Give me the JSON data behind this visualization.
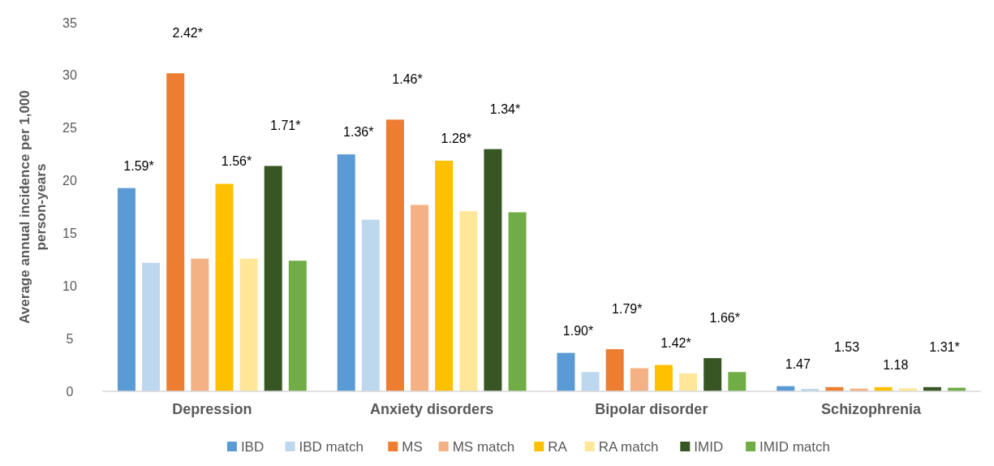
{
  "chart_data": {
    "type": "bar",
    "ylabel": "Average annual incidence per 1,000 person-years",
    "categories": [
      "Depression",
      "Anxiety disorders",
      "Bipolar disorder",
      "Schizophrenia"
    ],
    "series": [
      {
        "name": "IBD",
        "color": "#5b9bd5",
        "values": [
          19.3,
          22.5,
          3.65,
          0.49
        ]
      },
      {
        "name": "IBD match",
        "color": "#bdd7ee",
        "values": [
          12.2,
          16.3,
          1.83,
          0.23
        ]
      },
      {
        "name": "MS",
        "color": "#ed7d31",
        "values": [
          30.2,
          25.8,
          4.0,
          0.4
        ]
      },
      {
        "name": "MS match",
        "color": "#f4b183",
        "values": [
          12.6,
          17.7,
          2.2,
          0.26
        ]
      },
      {
        "name": "RA",
        "color": "#ffc000",
        "values": [
          19.7,
          21.9,
          2.5,
          0.4
        ]
      },
      {
        "name": "RA match",
        "color": "#ffe699",
        "values": [
          12.6,
          17.1,
          1.7,
          0.29
        ]
      },
      {
        "name": "IMID",
        "color": "#375623",
        "values": [
          21.4,
          23.0,
          3.15,
          0.4
        ]
      },
      {
        "name": "IMID match",
        "color": "#70ad47",
        "values": [
          12.4,
          17.0,
          1.83,
          0.34
        ]
      }
    ],
    "ylim": [
      0,
      35
    ],
    "yticks": [
      0,
      5,
      10,
      15,
      20,
      25,
      30,
      35
    ],
    "grid": false,
    "legend": "bottom",
    "annotations": [
      "1.59*",
      "2.42*",
      "1.56*",
      "1.71*",
      "1.36*",
      "1.46*",
      "1.28*",
      "1.34*",
      "1.90*",
      "1.79*",
      "1.42*",
      "1.66*",
      "1.47",
      "1.53",
      "1.18",
      "1.31*"
    ]
  }
}
